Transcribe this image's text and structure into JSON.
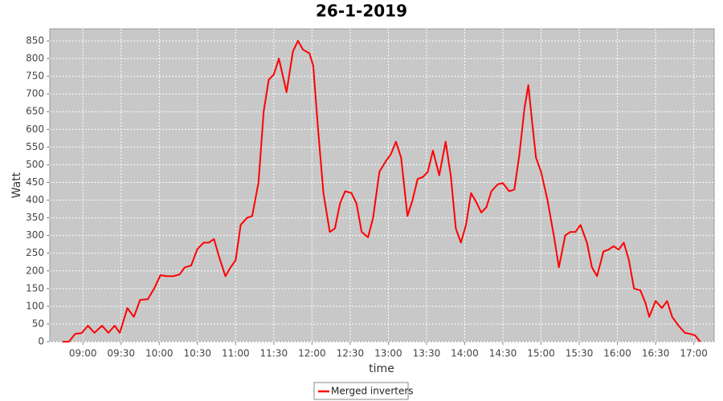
{
  "chart_data": {
    "type": "line",
    "title": "26-1-2019",
    "x_label": "time",
    "y_label": "Watt",
    "x": [
      "08:44",
      "08:49",
      "08:54",
      "08:59",
      "09:04",
      "09:09",
      "09:15",
      "09:20",
      "09:25",
      "09:29",
      "09:35",
      "09:40",
      "09:45",
      "09:51",
      "09:56",
      "10:01",
      "10:06",
      "10:11",
      "10:16",
      "10:20",
      "10:25",
      "10:30",
      "10:35",
      "10:39",
      "10:43",
      "10:47",
      "10:52",
      "10:56",
      "11:00",
      "11:04",
      "11:09",
      "11:13",
      "11:18",
      "11:22",
      "11:26",
      "11:30",
      "11:34",
      "11:40",
      "11:45",
      "11:49",
      "11:53",
      "11:58",
      "12:01",
      "12:05",
      "12:09",
      "12:14",
      "12:18",
      "12:22",
      "12:26",
      "12:31",
      "12:35",
      "12:39",
      "12:44",
      "12:48",
      "12:53",
      "12:58",
      "13:02",
      "13:06",
      "13:10",
      "13:15",
      "13:19",
      "13:23",
      "13:27",
      "13:31",
      "13:35",
      "13:40",
      "13:45",
      "13:49",
      "13:53",
      "13:57",
      "14:01",
      "14:05",
      "14:09",
      "14:13",
      "14:17",
      "14:21",
      "14:26",
      "14:30",
      "14:35",
      "14:39",
      "14:43",
      "14:47",
      "14:50",
      "14:53",
      "14:56",
      "15:00",
      "15:05",
      "15:10",
      "15:14",
      "15:19",
      "15:23",
      "15:27",
      "15:31",
      "15:36",
      "15:40",
      "15:44",
      "15:49",
      "15:53",
      "15:57",
      "16:01",
      "16:05",
      "16:09",
      "16:13",
      "16:18",
      "16:22",
      "16:25",
      "16:30",
      "16:35",
      "16:39",
      "16:43",
      "16:48",
      "16:53",
      "16:57",
      "17:01",
      "17:05"
    ],
    "series": [
      {
        "name": "Merged inverters",
        "color": "#ff0000",
        "values": [
          0,
          0,
          22,
          24,
          45,
          25,
          45,
          25,
          45,
          25,
          95,
          70,
          118,
          120,
          150,
          188,
          185,
          185,
          190,
          210,
          215,
          262,
          280,
          280,
          290,
          240,
          185,
          210,
          230,
          330,
          350,
          355,
          450,
          650,
          740,
          755,
          800,
          705,
          820,
          850,
          825,
          815,
          780,
          590,
          420,
          310,
          320,
          390,
          425,
          420,
          390,
          310,
          295,
          350,
          480,
          510,
          530,
          565,
          520,
          355,
          400,
          460,
          465,
          480,
          540,
          470,
          565,
          470,
          320,
          280,
          330,
          420,
          395,
          365,
          380,
          425,
          445,
          448,
          425,
          430,
          530,
          660,
          725,
          620,
          520,
          480,
          400,
          300,
          210,
          300,
          310,
          310,
          330,
          280,
          210,
          185,
          255,
          260,
          270,
          260,
          280,
          230,
          150,
          145,
          110,
          70,
          115,
          95,
          115,
          70,
          45,
          25,
          22,
          18,
          0
        ]
      }
    ],
    "xlim": [
      "08:34",
      "17:16"
    ],
    "xticks": [
      "09:00",
      "09:30",
      "10:00",
      "10:30",
      "11:00",
      "11:30",
      "12:00",
      "12:30",
      "13:00",
      "13:30",
      "14:00",
      "14:30",
      "15:00",
      "15:30",
      "16:00",
      "16:30",
      "17:00"
    ],
    "ylim": [
      0,
      884
    ],
    "yticks": [
      0,
      50,
      100,
      150,
      200,
      250,
      300,
      350,
      400,
      450,
      500,
      550,
      600,
      650,
      700,
      750,
      800,
      850
    ],
    "grid": true,
    "legend": "bottom"
  }
}
